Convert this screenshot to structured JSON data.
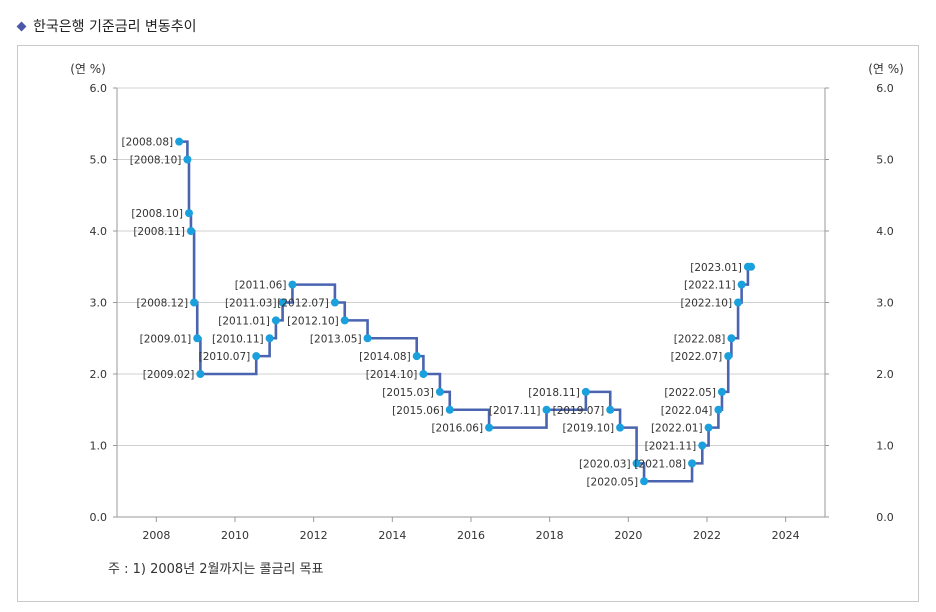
{
  "title": "한국은행 기준금리 변동추이",
  "footnote": "주 : 1) 2008년 2월까지는 콜금리 목표",
  "chart_data": {
    "type": "line",
    "step": "post",
    "ylabel_left": "(연 %)",
    "ylabel_right": "(연 %)",
    "ylim": [
      0,
      6
    ],
    "xlim": [
      2007,
      2025
    ],
    "yticks": [
      "0.0",
      "1.0",
      "2.0",
      "3.0",
      "4.0",
      "5.0",
      "6.0"
    ],
    "xticks": [
      "2008",
      "2010",
      "2012",
      "2014",
      "2016",
      "2018",
      "2020",
      "2022",
      "2024"
    ],
    "grid": true,
    "line_color": "#4a64b0",
    "marker_color": "#1aa0dc",
    "series": [
      {
        "points": [
          {
            "label": "[2008.08]",
            "x": 2008.58,
            "y": 5.25
          },
          {
            "label": "[2008.10]",
            "x": 2008.79,
            "y": 5.0
          },
          {
            "label": "[2008.10]",
            "x": 2008.83,
            "y": 4.25
          },
          {
            "label": "[2008.11]",
            "x": 2008.88,
            "y": 4.0
          },
          {
            "label": "[2008.12]",
            "x": 2008.96,
            "y": 3.0
          },
          {
            "label": "[2009.01]",
            "x": 2009.04,
            "y": 2.5
          },
          {
            "label": "[2009.02]",
            "x": 2009.12,
            "y": 2.0
          },
          {
            "label": "[2010.07]",
            "x": 2010.54,
            "y": 2.25
          },
          {
            "label": "[2010.11]",
            "x": 2010.88,
            "y": 2.5
          },
          {
            "label": "[2011.01]",
            "x": 2011.04,
            "y": 2.75
          },
          {
            "label": "[2011.03]",
            "x": 2011.21,
            "y": 3.0
          },
          {
            "label": "[2011.06]",
            "x": 2011.46,
            "y": 3.25
          },
          {
            "label": "[2012.07]",
            "x": 2012.54,
            "y": 3.0
          },
          {
            "label": "[2012.10]",
            "x": 2012.79,
            "y": 2.75
          },
          {
            "label": "[2013.05]",
            "x": 2013.37,
            "y": 2.5
          },
          {
            "label": "[2014.08]",
            "x": 2014.62,
            "y": 2.25
          },
          {
            "label": "[2014.10]",
            "x": 2014.79,
            "y": 2.0
          },
          {
            "label": "[2015.03]",
            "x": 2015.21,
            "y": 1.75
          },
          {
            "label": "[2015.06]",
            "x": 2015.46,
            "y": 1.5
          },
          {
            "label": "[2016.06]",
            "x": 2016.46,
            "y": 1.25
          },
          {
            "label": "[2017.11]",
            "x": 2017.92,
            "y": 1.5
          },
          {
            "label": "[2018.11]",
            "x": 2018.92,
            "y": 1.75
          },
          {
            "label": "[2019.07]",
            "x": 2019.54,
            "y": 1.5
          },
          {
            "label": "[2019.10]",
            "x": 2019.79,
            "y": 1.25
          },
          {
            "label": "[2020.03]",
            "x": 2020.21,
            "y": 0.75
          },
          {
            "label": "[2020.05]",
            "x": 2020.4,
            "y": 0.5
          },
          {
            "label": "[2021.08]",
            "x": 2021.62,
            "y": 0.75
          },
          {
            "label": "[2021.11]",
            "x": 2021.88,
            "y": 1.0
          },
          {
            "label": "[2022.01]",
            "x": 2022.04,
            "y": 1.25
          },
          {
            "label": "[2022.04]",
            "x": 2022.29,
            "y": 1.5
          },
          {
            "label": "[2022.05]",
            "x": 2022.38,
            "y": 1.75
          },
          {
            "label": "[2022.07]",
            "x": 2022.54,
            "y": 2.25
          },
          {
            "label": "[2022.08]",
            "x": 2022.62,
            "y": 2.5
          },
          {
            "label": "[2022.10]",
            "x": 2022.79,
            "y": 3.0
          },
          {
            "label": "[2022.11]",
            "x": 2022.88,
            "y": 3.25
          },
          {
            "label": "[2023.01]",
            "x": 2023.04,
            "y": 3.5
          }
        ],
        "end_x": 2023.12
      }
    ]
  }
}
